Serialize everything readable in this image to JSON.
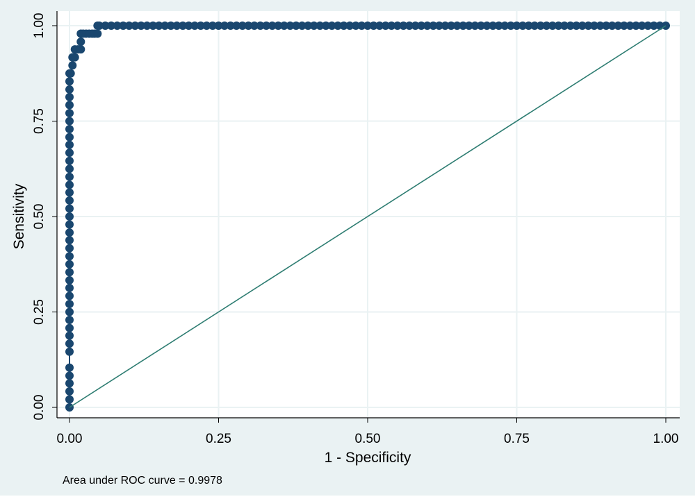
{
  "chart_data": {
    "type": "scatter",
    "xlabel": "1 - Specificity",
    "ylabel": "Sensitivity",
    "annotation": "Area under ROC curve = 0.9978",
    "xlim": [
      0,
      1
    ],
    "ylim": [
      0,
      1
    ],
    "xticks": [
      {
        "value": 0,
        "label": "0.00"
      },
      {
        "value": 0.25,
        "label": "0.25"
      },
      {
        "value": 0.5,
        "label": "0.50"
      },
      {
        "value": 0.75,
        "label": "0.75"
      },
      {
        "value": 1,
        "label": "1.00"
      }
    ],
    "yticks": [
      {
        "value": 0,
        "label": "0.00"
      },
      {
        "value": 0.25,
        "label": "0.25"
      },
      {
        "value": 0.5,
        "label": "0.50"
      },
      {
        "value": 0.75,
        "label": "0.75"
      },
      {
        "value": 1,
        "label": "1.00"
      }
    ],
    "grid": true,
    "series": [
      {
        "color": "#1a476f",
        "markers": true,
        "x": [
          0,
          0,
          0,
          0,
          0,
          0,
          0,
          0,
          0,
          0,
          0,
          0,
          0,
          0,
          0,
          0,
          0,
          0,
          0,
          0,
          0,
          0,
          0,
          0,
          0,
          0,
          0,
          0,
          0,
          0,
          0,
          0,
          0,
          0,
          0,
          0,
          0,
          0,
          0,
          0,
          0,
          0,
          0.002,
          0.005,
          0.005,
          0.009,
          0.009,
          0.014,
          0.019,
          0.019,
          0.019,
          0.023,
          0.028,
          0.033,
          0.038,
          0.042,
          0.047,
          0.047,
          0.05,
          0.06,
          0.07,
          0.08,
          0.09,
          0.1,
          0.11,
          0.12,
          0.13,
          0.14,
          0.15,
          0.16,
          0.17,
          0.18,
          0.19,
          0.2,
          0.21,
          0.22,
          0.23,
          0.24,
          0.25,
          0.26,
          0.27,
          0.28,
          0.29,
          0.3,
          0.31,
          0.32,
          0.33,
          0.34,
          0.35,
          0.36,
          0.37,
          0.38,
          0.39,
          0.4,
          0.41,
          0.42,
          0.43,
          0.44,
          0.45,
          0.46,
          0.47,
          0.48,
          0.49,
          0.5,
          0.51,
          0.52,
          0.53,
          0.54,
          0.55,
          0.56,
          0.57,
          0.58,
          0.59,
          0.6,
          0.61,
          0.62,
          0.63,
          0.64,
          0.65,
          0.66,
          0.67,
          0.68,
          0.69,
          0.7,
          0.71,
          0.72,
          0.73,
          0.74,
          0.75,
          0.76,
          0.77,
          0.78,
          0.79,
          0.8,
          0.81,
          0.82,
          0.83,
          0.84,
          0.85,
          0.86,
          0.87,
          0.88,
          0.89,
          0.9,
          0.91,
          0.92,
          0.93,
          0.94,
          0.95,
          0.96,
          0.97,
          0.98,
          0.99,
          1
        ],
        "values": [
          0,
          0.021,
          0.042,
          0.063,
          0.083,
          0.104,
          0.146,
          0.167,
          0.188,
          0.208,
          0.229,
          0.25,
          0.271,
          0.292,
          0.313,
          0.333,
          0.354,
          0.375,
          0.396,
          0.417,
          0.438,
          0.458,
          0.479,
          0.5,
          0.521,
          0.542,
          0.563,
          0.583,
          0.604,
          0.625,
          0.646,
          0.667,
          0.688,
          0.708,
          0.729,
          0.75,
          0.771,
          0.792,
          0.813,
          0.833,
          0.854,
          0.875,
          0.875,
          0.896,
          0.917,
          0.917,
          0.938,
          0.938,
          0.938,
          0.958,
          0.979,
          0.979,
          0.979,
          0.979,
          0.979,
          0.979,
          0.979,
          1,
          1,
          1,
          1,
          1,
          1,
          1,
          1,
          1,
          1,
          1,
          1,
          1,
          1,
          1,
          1,
          1,
          1,
          1,
          1,
          1,
          1,
          1,
          1,
          1,
          1,
          1,
          1,
          1,
          1,
          1,
          1,
          1,
          1,
          1,
          1,
          1,
          1,
          1,
          1,
          1,
          1,
          1,
          1,
          1,
          1,
          1,
          1,
          1,
          1,
          1,
          1,
          1,
          1,
          1,
          1,
          1,
          1,
          1,
          1,
          1,
          1,
          1,
          1,
          1,
          1,
          1,
          1,
          1,
          1,
          1,
          1,
          1,
          1,
          1,
          1,
          1,
          1,
          1,
          1,
          1,
          1,
          1,
          1,
          1,
          1,
          1,
          1,
          1,
          1,
          1,
          1,
          1,
          1,
          1,
          1,
          1
        ]
      },
      {
        "color": "#2e7d72",
        "markers": false,
        "x": [
          0,
          1
        ],
        "values": [
          0,
          1
        ]
      }
    ]
  }
}
